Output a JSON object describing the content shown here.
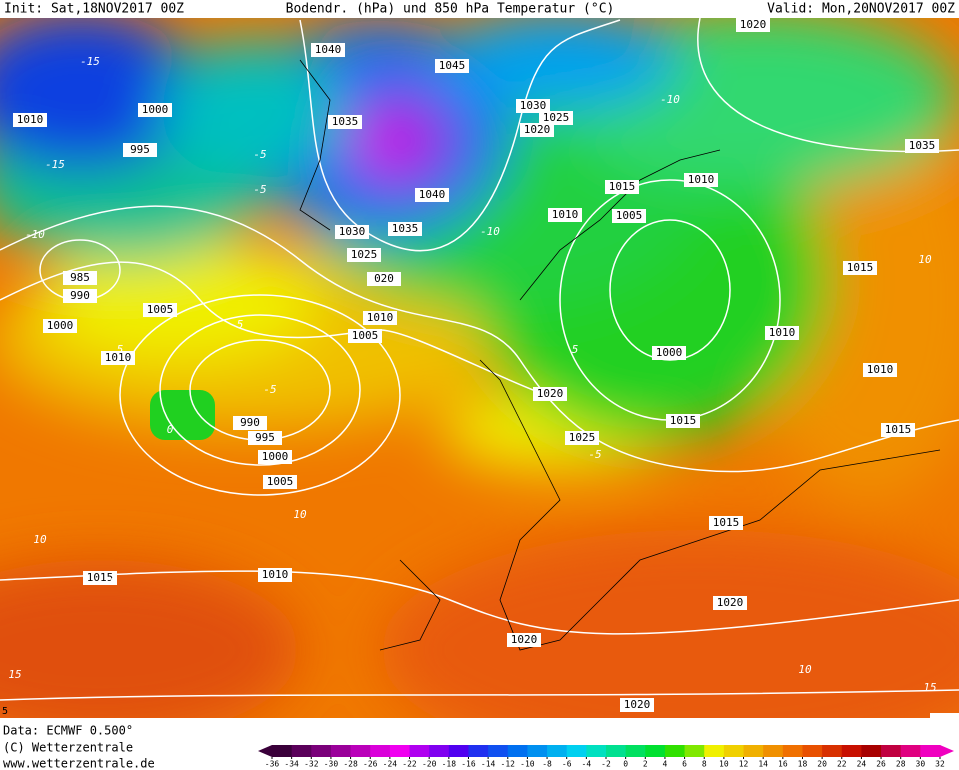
{
  "header": {
    "init": "Init: Sat,18NOV2017 00Z",
    "title": "Bodendr. (hPa) und 850 hPa Temperatur (°C)",
    "valid": "Valid: Mon,20NOV2017 00Z"
  },
  "isobar_labels": [
    "1010",
    "1000",
    "995",
    "985",
    "990",
    "1000",
    "1005",
    "1010",
    "990",
    "995",
    "1000",
    "1005",
    "1015",
    "1010",
    "1040",
    "1035",
    "1040",
    "1030",
    "1035",
    "1025",
    "020",
    "1010",
    "1005",
    "1045",
    "1030",
    "1025",
    "1020",
    "1015",
    "1010",
    "1010",
    "1005",
    "1020",
    "1035",
    "1015",
    "1010",
    "1000",
    "1020",
    "1025",
    "1015",
    "1010",
    "1015",
    "1015",
    "1020",
    "1020",
    "1020"
  ],
  "temperature_labels": [
    "-15",
    "-10",
    "-5",
    "-15",
    "0",
    "5",
    "10",
    "10",
    "10",
    "15",
    "-5",
    "-5",
    "5",
    "10",
    "5",
    "-10",
    "15",
    "-10",
    "10",
    "-5"
  ],
  "footer": {
    "data": "Data: ECMWF  0.500°",
    "copyright": "(C) Wetterzentrale",
    "url": "www.wetterzentrale.de",
    "corner": "5"
  },
  "colorbar": {
    "ticks": [
      -36,
      -34,
      -32,
      -30,
      -28,
      -26,
      -24,
      -22,
      -20,
      -18,
      -16,
      -14,
      -12,
      -10,
      -8,
      -6,
      -4,
      -2,
      0,
      2,
      4,
      6,
      8,
      10,
      12,
      14,
      16,
      18,
      20,
      22,
      24,
      26,
      28,
      30,
      32
    ],
    "colors": [
      "#3a003a",
      "#5a005a",
      "#7a007a",
      "#9a009a",
      "#ba00ba",
      "#da00da",
      "#f000f0",
      "#b000f0",
      "#8000f0",
      "#5000f0",
      "#2030f0",
      "#1050f0",
      "#0070f0",
      "#0090f0",
      "#00b0f0",
      "#00d0f0",
      "#00e0c0",
      "#00e090",
      "#00e060",
      "#00e030",
      "#30e000",
      "#80e800",
      "#f0f000",
      "#f0d000",
      "#f0b000",
      "#f09000",
      "#f07000",
      "#e85000",
      "#d83000",
      "#c81000",
      "#a80000",
      "#c00040",
      "#e00080",
      "#f000c0"
    ]
  }
}
